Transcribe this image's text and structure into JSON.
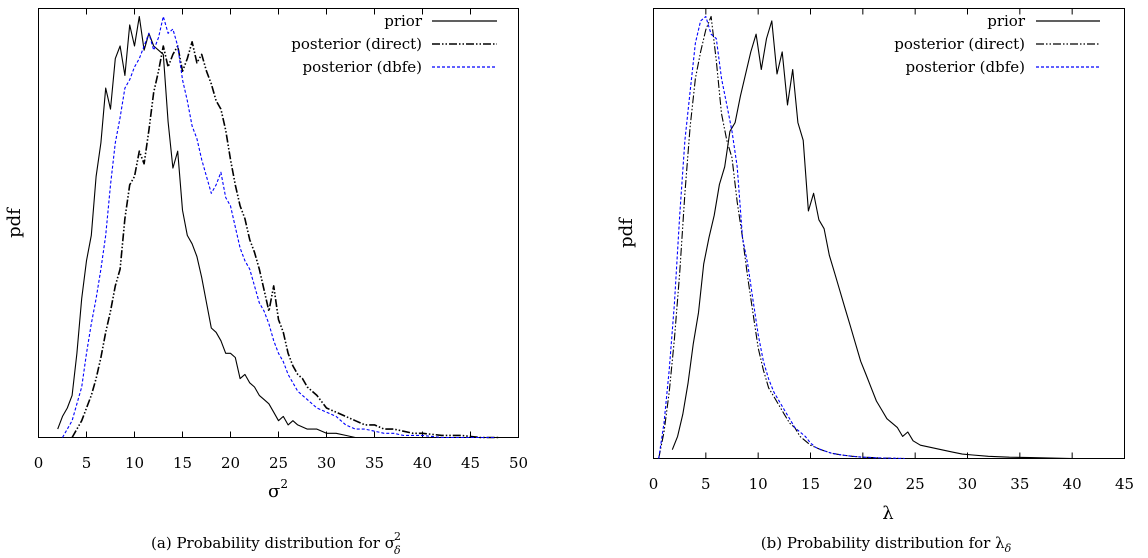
{
  "chart_data": [
    {
      "type": "line",
      "ylabel": "pdf",
      "xlabel": "σ",
      "xlabel_sup": "2",
      "xlim": [
        0,
        50
      ],
      "ylim": [
        0,
        1
      ],
      "xticks": [
        0,
        5,
        10,
        15,
        20,
        25,
        30,
        35,
        40,
        45,
        50
      ],
      "caption": "(a)  Probability distribution for σ",
      "caption_sub": "δ",
      "caption_sup": "2",
      "legend_position": "top-right",
      "series": [
        {
          "name": "prior",
          "color": "#000000",
          "dash": "solid",
          "x": [
            2,
            2.5,
            3,
            3.5,
            4,
            4.5,
            5,
            5.5,
            6,
            6.5,
            7,
            7.5,
            8,
            8.5,
            9,
            9.5,
            10,
            10.5,
            11,
            11.5,
            12,
            12.5,
            13,
            13.5,
            14,
            14.5,
            15,
            15.5,
            16,
            16.5,
            17,
            17.5,
            18,
            18.5,
            19,
            19.5,
            20,
            20.5,
            21,
            21.5,
            22,
            22.5,
            23,
            23.5,
            24,
            24.5,
            25,
            25.5,
            26,
            26.5,
            27,
            28,
            29,
            30,
            31,
            32,
            33
          ],
          "y": [
            0.02,
            0.05,
            0.07,
            0.1,
            0.2,
            0.33,
            0.42,
            0.48,
            0.62,
            0.7,
            0.83,
            0.78,
            0.9,
            0.93,
            0.86,
            0.98,
            0.93,
            1.0,
            0.92,
            0.96,
            0.93,
            0.92,
            0.91,
            0.75,
            0.64,
            0.68,
            0.54,
            0.48,
            0.46,
            0.43,
            0.38,
            0.32,
            0.26,
            0.25,
            0.23,
            0.2,
            0.2,
            0.19,
            0.14,
            0.15,
            0.13,
            0.12,
            0.1,
            0.09,
            0.08,
            0.06,
            0.04,
            0.05,
            0.03,
            0.04,
            0.03,
            0.02,
            0.02,
            0.01,
            0.01,
            0.005,
            0.0
          ]
        },
        {
          "name": "posterior (direct)",
          "color": "#000000",
          "dash": "dashdotdot",
          "x": [
            3.5,
            4,
            4.5,
            5,
            5.5,
            6,
            6.5,
            7,
            7.5,
            8,
            8.5,
            9,
            9.5,
            10,
            10.5,
            11,
            11.5,
            12,
            12.5,
            13,
            13.5,
            14,
            14.5,
            15,
            15.5,
            16,
            16.5,
            17,
            17.5,
            18,
            18.5,
            19,
            19.5,
            20,
            20.5,
            21,
            21.5,
            22,
            22.5,
            23,
            23.5,
            24,
            24.5,
            25,
            25.5,
            26,
            26.5,
            27,
            27.5,
            28,
            29,
            30,
            31,
            32,
            33,
            34,
            35,
            36,
            37,
            38,
            39,
            40,
            42,
            44,
            46,
            48
          ],
          "y": [
            0.0,
            0.02,
            0.04,
            0.07,
            0.1,
            0.14,
            0.19,
            0.25,
            0.3,
            0.36,
            0.4,
            0.52,
            0.6,
            0.62,
            0.68,
            0.65,
            0.73,
            0.82,
            0.87,
            0.93,
            0.88,
            0.91,
            0.93,
            0.87,
            0.9,
            0.94,
            0.89,
            0.91,
            0.87,
            0.84,
            0.8,
            0.78,
            0.73,
            0.66,
            0.6,
            0.55,
            0.52,
            0.47,
            0.44,
            0.4,
            0.35,
            0.3,
            0.36,
            0.28,
            0.25,
            0.2,
            0.17,
            0.15,
            0.14,
            0.12,
            0.1,
            0.07,
            0.06,
            0.05,
            0.04,
            0.03,
            0.03,
            0.02,
            0.02,
            0.015,
            0.01,
            0.01,
            0.005,
            0.005,
            0.0,
            0.0
          ]
        },
        {
          "name": "posterior (dbfe)",
          "color": "#0000ff",
          "dash": "dotted",
          "x": [
            2.5,
            3,
            3.5,
            4,
            4.5,
            5,
            5.5,
            6,
            6.5,
            7,
            7.5,
            8,
            8.5,
            9,
            9.5,
            10,
            10.5,
            11,
            11.5,
            12,
            12.5,
            13,
            13.5,
            14,
            14.5,
            15,
            15.5,
            16,
            16.5,
            17,
            17.5,
            18,
            18.5,
            19,
            19.5,
            20,
            20.5,
            21,
            21.5,
            22,
            22.5,
            23,
            23.5,
            24,
            24.5,
            25,
            25.5,
            26,
            26.5,
            27,
            27.5,
            28,
            29,
            30,
            31,
            32,
            33,
            34,
            35,
            36,
            37,
            38,
            40,
            42,
            44,
            46,
            47.5
          ],
          "y": [
            0.0,
            0.02,
            0.04,
            0.08,
            0.12,
            0.2,
            0.27,
            0.33,
            0.4,
            0.48,
            0.6,
            0.7,
            0.76,
            0.83,
            0.85,
            0.88,
            0.9,
            0.93,
            0.96,
            0.92,
            0.95,
            1.0,
            0.96,
            0.97,
            0.93,
            0.85,
            0.8,
            0.74,
            0.71,
            0.66,
            0.62,
            0.58,
            0.6,
            0.63,
            0.57,
            0.55,
            0.5,
            0.45,
            0.42,
            0.4,
            0.36,
            0.32,
            0.3,
            0.27,
            0.23,
            0.2,
            0.18,
            0.15,
            0.13,
            0.11,
            0.1,
            0.09,
            0.07,
            0.06,
            0.05,
            0.03,
            0.02,
            0.02,
            0.015,
            0.01,
            0.01,
            0.005,
            0.005,
            0.0,
            0.0,
            0.0,
            0.0
          ]
        }
      ]
    },
    {
      "type": "line",
      "ylabel": "pdf",
      "xlabel": "λ",
      "xlim": [
        0,
        45
      ],
      "ylim": [
        0,
        1
      ],
      "xticks": [
        0,
        5,
        10,
        15,
        20,
        25,
        30,
        35,
        40,
        45
      ],
      "caption": "(b)  Probability distribution for λ",
      "caption_sub": "δ",
      "legend_position": "top-right",
      "series": [
        {
          "name": "prior",
          "color": "#000000",
          "dash": "solid",
          "x": [
            1.8,
            2.3,
            2.8,
            3.3,
            3.8,
            4.3,
            4.8,
            5.3,
            5.8,
            6.3,
            6.8,
            7.3,
            7.8,
            8.3,
            8.8,
            9.3,
            9.8,
            10.3,
            10.8,
            11.3,
            11.8,
            12.3,
            12.8,
            13.3,
            13.8,
            14.3,
            14.8,
            15.3,
            15.8,
            16.3,
            16.8,
            17.3,
            17.8,
            18.3,
            18.8,
            19.3,
            19.8,
            20.3,
            20.8,
            21.3,
            21.8,
            22.3,
            22.8,
            23.3,
            23.8,
            24.3,
            24.8,
            25.5,
            26.5,
            27.5,
            28.5,
            29.5,
            30.5,
            32,
            34,
            36,
            38,
            40,
            42
          ],
          "y": [
            0.02,
            0.05,
            0.1,
            0.17,
            0.26,
            0.33,
            0.44,
            0.5,
            0.55,
            0.62,
            0.66,
            0.74,
            0.76,
            0.82,
            0.87,
            0.92,
            0.96,
            0.88,
            0.95,
            0.99,
            0.87,
            0.92,
            0.8,
            0.88,
            0.76,
            0.72,
            0.56,
            0.6,
            0.54,
            0.52,
            0.46,
            0.42,
            0.38,
            0.34,
            0.3,
            0.26,
            0.22,
            0.19,
            0.16,
            0.13,
            0.11,
            0.09,
            0.08,
            0.07,
            0.05,
            0.06,
            0.04,
            0.03,
            0.025,
            0.02,
            0.015,
            0.01,
            0.008,
            0.005,
            0.003,
            0.002,
            0.001,
            0.0,
            0.0
          ]
        },
        {
          "name": "posterior (direct)",
          "color": "#000000",
          "dash": "dashdotdot",
          "x": [
            0.5,
            1,
            1.5,
            2,
            2.5,
            3,
            3.5,
            4,
            4.5,
            5,
            5.5,
            6,
            6.5,
            7,
            7.5,
            8,
            8.5,
            9,
            9.5,
            10,
            10.5,
            11,
            11.5,
            12,
            12.5,
            13,
            13.5,
            14,
            14.5,
            15,
            15.5,
            16,
            17,
            18,
            19,
            20,
            22,
            24
          ],
          "y": [
            0.0,
            0.06,
            0.15,
            0.27,
            0.42,
            0.6,
            0.75,
            0.86,
            0.92,
            0.97,
            1.0,
            0.9,
            0.78,
            0.72,
            0.68,
            0.58,
            0.5,
            0.41,
            0.33,
            0.25,
            0.2,
            0.16,
            0.14,
            0.12,
            0.1,
            0.08,
            0.07,
            0.05,
            0.04,
            0.03,
            0.025,
            0.02,
            0.012,
            0.008,
            0.005,
            0.003,
            0.001,
            0.0
          ]
        },
        {
          "name": "posterior (dbfe)",
          "color": "#0000ff",
          "dash": "dotted",
          "x": [
            0.5,
            1,
            1.5,
            2,
            2.5,
            3,
            3.5,
            4,
            4.5,
            5,
            5.5,
            6,
            6.5,
            7,
            7.5,
            8,
            8.5,
            9,
            9.5,
            10,
            10.5,
            11,
            11.5,
            12,
            12.5,
            13,
            13.5,
            14,
            14.5,
            15,
            15.5,
            16,
            17,
            18,
            19,
            20,
            22,
            24
          ],
          "y": [
            0.0,
            0.08,
            0.2,
            0.35,
            0.55,
            0.72,
            0.83,
            0.94,
            0.99,
            1.0,
            0.96,
            0.95,
            0.86,
            0.8,
            0.74,
            0.66,
            0.5,
            0.44,
            0.36,
            0.28,
            0.22,
            0.18,
            0.15,
            0.13,
            0.11,
            0.09,
            0.07,
            0.06,
            0.05,
            0.035,
            0.025,
            0.02,
            0.012,
            0.008,
            0.005,
            0.003,
            0.001,
            0.0
          ]
        }
      ]
    }
  ]
}
